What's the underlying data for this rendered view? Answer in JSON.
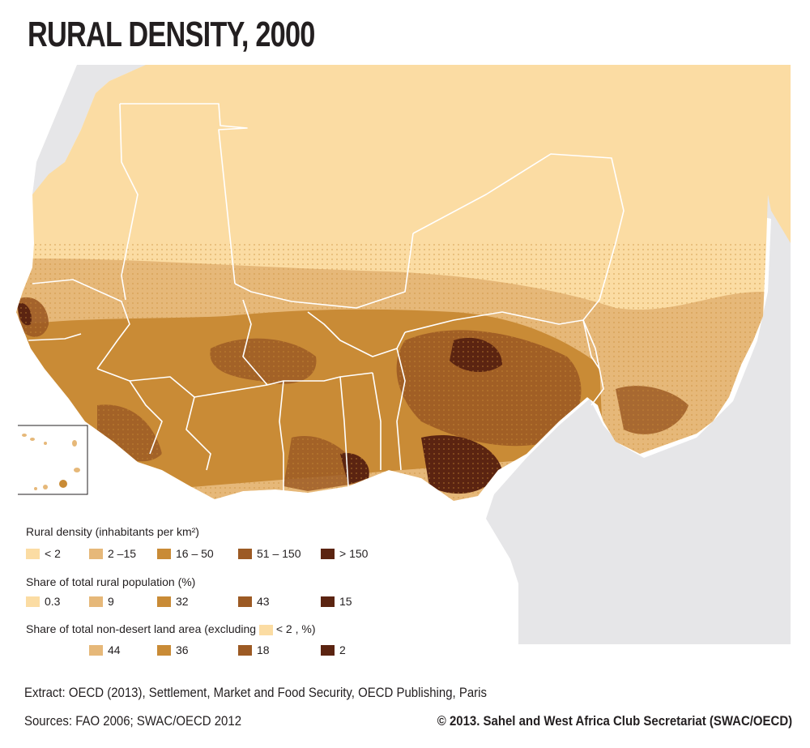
{
  "title": "RURAL DENSITY, 2000",
  "colors": {
    "land_other": "#e6e6e8",
    "sea": "#ffffff",
    "border": "#ffffff",
    "class_lt2": "#fbdca3",
    "class_2_15": "#e6b879",
    "class_16_50": "#c98b36",
    "class_51_150": "#9c5a24",
    "class_gt150": "#5b2411"
  },
  "legend": {
    "density": {
      "heading": "Rural density (inhabitants per km²)",
      "items": [
        "< 2",
        "2 –15",
        "16 – 50",
        "51 – 150",
        "> 150"
      ]
    },
    "population_share": {
      "heading": "Share of total rural population (%)",
      "items": [
        "0.3",
        "9",
        "32",
        "43",
        "15"
      ]
    },
    "land_share": {
      "heading": "Share of total non-desert land area (excluding",
      "heading_suffix": "< 2 , %)",
      "items": [
        "44",
        "36",
        "18",
        "2"
      ]
    }
  },
  "footer": {
    "extract": "Extract: OECD (2013), Settlement, Market and Food Security, OECD Publishing, Paris",
    "sources": "Sources: FAO 2006; SWAC/OECD 2012",
    "copyright": "© 2013. Sahel and West Africa Club Secretariat (SWAC/OECD)"
  }
}
